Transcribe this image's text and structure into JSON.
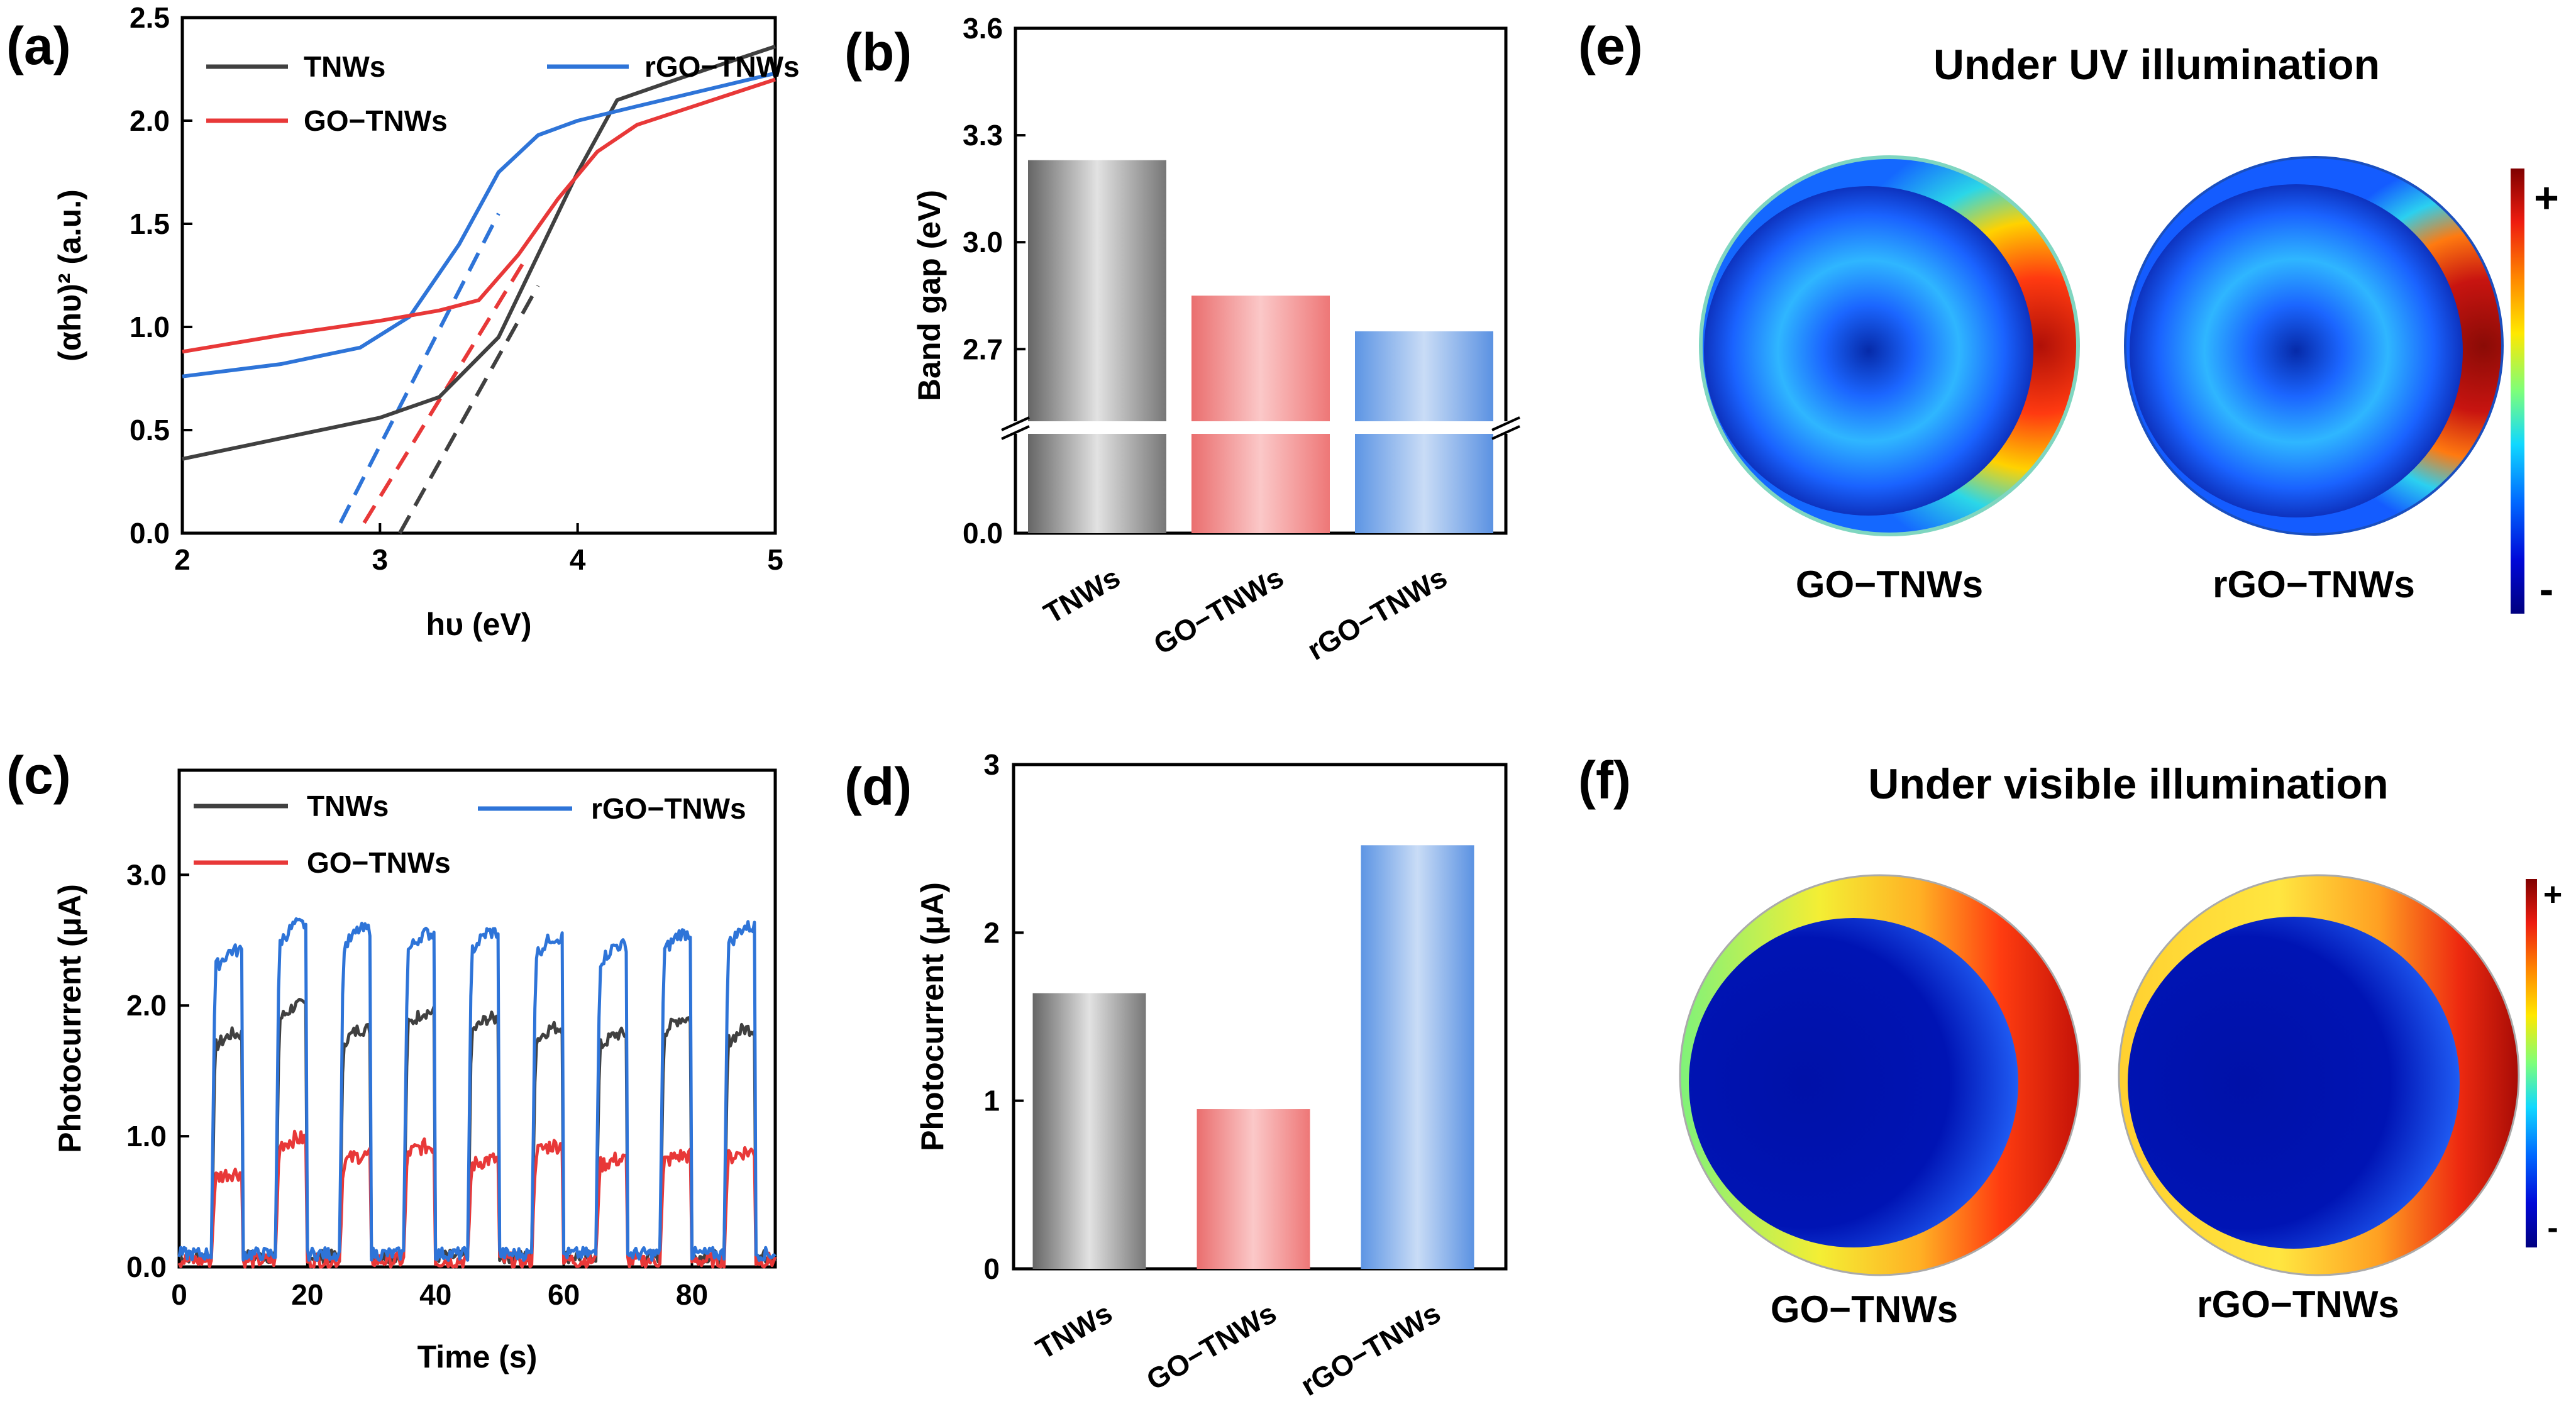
{
  "panels": {
    "a": {
      "label": "(a)"
    },
    "b": {
      "label": "(b)"
    },
    "c": {
      "label": "(c)"
    },
    "d": {
      "label": "(d)"
    },
    "e": {
      "label": "(e)",
      "title": "Under UV illumination",
      "maps": [
        "GO−TNWs",
        "rGO−TNWs"
      ],
      "colorbar": {
        "max_label": "+",
        "min_label": "-"
      }
    },
    "f": {
      "label": "(f)",
      "title": "Under visible illumination",
      "maps": [
        "GO−TNWs",
        "rGO−TNWs"
      ],
      "colorbar": {
        "max_label": "+",
        "min_label": "-"
      }
    }
  },
  "colors": {
    "TNWs": "#404040",
    "GO-TNWs": "#e83838",
    "rGO-TNWs": "#2e74d8"
  },
  "chart_data": [
    {
      "id": "a",
      "type": "line",
      "xlabel": "hυ (eV)",
      "ylabel": "(αhυ)² (a.u.)",
      "xlim": [
        2,
        5
      ],
      "ylim": [
        0,
        2.5
      ],
      "xticks": [
        2,
        3,
        4,
        5
      ],
      "yticks": [
        0.0,
        0.5,
        1.0,
        1.5,
        2.0,
        2.5
      ],
      "legend": [
        "TNWs",
        "rGO−TNWs",
        "GO−TNWs"
      ],
      "series": [
        {
          "name": "TNWs",
          "key": "TNWs",
          "x": [
            2.0,
            2.5,
            3.0,
            3.3,
            3.6,
            3.8,
            4.0,
            4.2,
            4.5,
            5.0
          ],
          "y": [
            0.36,
            0.46,
            0.56,
            0.66,
            0.95,
            1.35,
            1.75,
            2.1,
            2.2,
            2.36
          ]
        },
        {
          "name": "rGO−TNWs",
          "key": "rGO-TNWs",
          "x": [
            2.0,
            2.5,
            2.9,
            3.15,
            3.4,
            3.6,
            3.8,
            4.0,
            4.3,
            5.0
          ],
          "y": [
            0.76,
            0.82,
            0.9,
            1.05,
            1.4,
            1.75,
            1.93,
            2.0,
            2.07,
            2.23
          ]
        },
        {
          "name": "GO−TNWs",
          "key": "GO-TNWs",
          "x": [
            2.0,
            2.5,
            3.0,
            3.3,
            3.5,
            3.7,
            3.9,
            4.1,
            4.3,
            5.0
          ],
          "y": [
            0.88,
            0.96,
            1.03,
            1.08,
            1.13,
            1.35,
            1.62,
            1.85,
            1.98,
            2.2
          ]
        }
      ],
      "tangents": [
        {
          "key": "rGO-TNWs",
          "x": [
            2.8,
            3.6
          ],
          "y": [
            0.05,
            1.55
          ]
        },
        {
          "key": "GO-TNWs",
          "x": [
            2.92,
            3.75
          ],
          "y": [
            0.05,
            1.35
          ]
        },
        {
          "key": "TNWs",
          "x": [
            3.1,
            3.8
          ],
          "y": [
            0.0,
            1.2
          ]
        }
      ]
    },
    {
      "id": "b",
      "type": "bar",
      "ylabel": "Band gap (eV)",
      "categories": [
        "TNWs",
        "GO−TNWs",
        "rGO−TNWs"
      ],
      "values": [
        3.23,
        2.85,
        2.75
      ],
      "ylim": [
        0.0,
        3.6
      ],
      "axis_break": true,
      "yticks": [
        "0.0",
        "2.7",
        "3.0",
        "3.3",
        "3.6"
      ]
    },
    {
      "id": "c",
      "type": "line",
      "xlabel": "Time (s)",
      "ylabel": "Photocurrent (μA)",
      "xlim": [
        0,
        93
      ],
      "ylim": [
        0,
        3.8
      ],
      "xticks": [
        0,
        20,
        40,
        60,
        80
      ],
      "yticks": [
        "0.0",
        "1.0",
        "2.0",
        "3.0"
      ],
      "legend": [
        "TNWs",
        "rGO−TNWs",
        "GO−TNWs"
      ],
      "on_intervals": [
        [
          5,
          10
        ],
        [
          15,
          20
        ],
        [
          25,
          30
        ],
        [
          35,
          40
        ],
        [
          45,
          50
        ],
        [
          55,
          60
        ],
        [
          65,
          70
        ],
        [
          75,
          80
        ],
        [
          85,
          90
        ]
      ],
      "series": [
        {
          "name": "TNWs",
          "key": "TNWs",
          "on_values": [
            1.78,
            2.0,
            1.82,
            1.95,
            1.9,
            1.83,
            1.78,
            1.9,
            1.82
          ],
          "off_value": 0.08
        },
        {
          "name": "rGO−TNWs",
          "key": "rGO-TNWs",
          "on_values": [
            2.42,
            2.62,
            2.58,
            2.55,
            2.56,
            2.52,
            2.46,
            2.55,
            2.6
          ],
          "off_value": 0.1
        },
        {
          "name": "GO−TNWs",
          "key": "GO-TNWs",
          "on_values": [
            0.72,
            0.98,
            0.85,
            0.92,
            0.82,
            0.93,
            0.82,
            0.85,
            0.88
          ],
          "off_value": 0.05
        }
      ]
    },
    {
      "id": "d",
      "type": "bar",
      "ylabel": "Photocurrent (μA)",
      "categories": [
        "TNWs",
        "GO−TNWs",
        "rGO−TNWs"
      ],
      "values": [
        1.64,
        0.95,
        2.52
      ],
      "ylim": [
        0,
        3
      ],
      "yticks": [
        0,
        1,
        2,
        3
      ]
    }
  ]
}
